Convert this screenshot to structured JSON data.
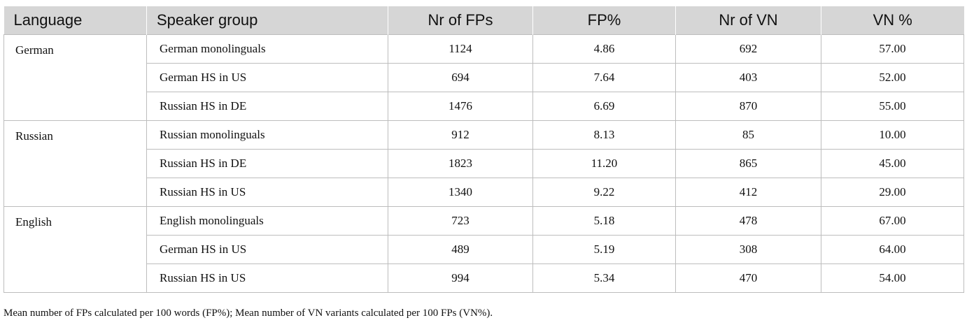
{
  "table": {
    "headers": [
      "Language",
      "Speaker group",
      "Nr of FPs",
      "FP%",
      "Nr of VN",
      "VN %"
    ],
    "groups": [
      {
        "language": "German",
        "rows": [
          {
            "speaker_group": "German monolinguals",
            "nr_fps": "1124",
            "fp_pct": "4.86",
            "nr_vn": "692",
            "vn_pct": "57.00"
          },
          {
            "speaker_group": "German HS in US",
            "nr_fps": "694",
            "fp_pct": "7.64",
            "nr_vn": "403",
            "vn_pct": "52.00"
          },
          {
            "speaker_group": "Russian HS in DE",
            "nr_fps": "1476",
            "fp_pct": "6.69",
            "nr_vn": "870",
            "vn_pct": "55.00"
          }
        ]
      },
      {
        "language": "Russian",
        "rows": [
          {
            "speaker_group": "Russian monolinguals",
            "nr_fps": "912",
            "fp_pct": "8.13",
            "nr_vn": "85",
            "vn_pct": "10.00"
          },
          {
            "speaker_group": "Russian HS in DE",
            "nr_fps": "1823",
            "fp_pct": "11.20",
            "nr_vn": "865",
            "vn_pct": "45.00"
          },
          {
            "speaker_group": "Russian HS in US",
            "nr_fps": "1340",
            "fp_pct": "9.22",
            "nr_vn": "412",
            "vn_pct": "29.00"
          }
        ]
      },
      {
        "language": "English",
        "rows": [
          {
            "speaker_group": "English monolinguals",
            "nr_fps": "723",
            "fp_pct": "5.18",
            "nr_vn": "478",
            "vn_pct": "67.00"
          },
          {
            "speaker_group": "German HS in US",
            "nr_fps": "489",
            "fp_pct": "5.19",
            "nr_vn": "308",
            "vn_pct": "64.00"
          },
          {
            "speaker_group": "Russian HS in US",
            "nr_fps": "994",
            "fp_pct": "5.34",
            "nr_vn": "470",
            "vn_pct": "54.00"
          }
        ]
      }
    ]
  },
  "footnote": "Mean number of FPs calculated per 100 words (FP%); Mean number of VN variants calculated per 100 FPs (VN%).",
  "colors": {
    "header_bg": "#d6d6d6",
    "grid": "#bdbdbd",
    "text": "#111111"
  }
}
